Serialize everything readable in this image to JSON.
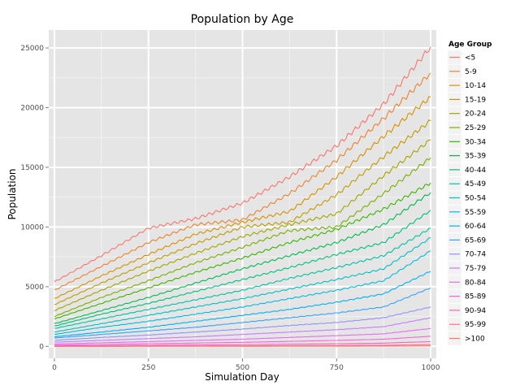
{
  "chart_data": {
    "type": "line",
    "title": "Population by Age",
    "xlabel": "Simulation Day",
    "ylabel": "Population",
    "xlim": [
      -15,
      1015
    ],
    "ylim": [
      -1000,
      26500
    ],
    "x_ticks": [
      0,
      250,
      500,
      750,
      1000
    ],
    "y_ticks": [
      0,
      5000,
      10000,
      15000,
      20000,
      25000
    ],
    "grid": true,
    "legend_title": "Age Group",
    "legend_position": "right",
    "x": [
      0,
      125,
      250,
      375,
      500,
      625,
      750,
      875,
      1000
    ],
    "series": [
      {
        "name": "<5",
        "color": "#F8766D",
        "values": [
          5400,
          7600,
          9900,
          10700,
          12000,
          14200,
          16800,
          20300,
          25100
        ]
      },
      {
        "name": "5-9",
        "color": "#EA8331",
        "values": [
          4700,
          6700,
          8700,
          10200,
          10600,
          12800,
          15600,
          19100,
          22900
        ]
      },
      {
        "name": "10-14",
        "color": "#D89000",
        "values": [
          4000,
          5900,
          7700,
          9400,
          10400,
          11300,
          14200,
          17600,
          20900
        ]
      },
      {
        "name": "15-19",
        "color": "#C09B00",
        "values": [
          3500,
          5300,
          7000,
          8600,
          10000,
          10400,
          12700,
          15900,
          18900
        ]
      },
      {
        "name": "20-24",
        "color": "#A3A500",
        "values": [
          3000,
          4700,
          6300,
          7800,
          9200,
          10200,
          11100,
          14300,
          17300
        ]
      },
      {
        "name": "25-29",
        "color": "#7CAE00",
        "values": [
          2500,
          4100,
          5500,
          7000,
          8300,
          9700,
          10000,
          12800,
          15800
        ]
      },
      {
        "name": "30-34",
        "color": "#39B600",
        "values": [
          2300,
          3600,
          4900,
          6200,
          7400,
          8700,
          9800,
          11500,
          13700
        ]
      },
      {
        "name": "35-39",
        "color": "#00BB4E",
        "values": [
          1900,
          3000,
          4100,
          5300,
          6500,
          7600,
          8700,
          10200,
          12900
        ]
      },
      {
        "name": "40-44",
        "color": "#00BF7D",
        "values": [
          1700,
          2700,
          3600,
          4600,
          5600,
          6600,
          7700,
          8700,
          11400
        ]
      },
      {
        "name": "45-49",
        "color": "#00C1A3",
        "values": [
          1500,
          2300,
          3100,
          3900,
          4700,
          5700,
          6600,
          7600,
          9900
        ]
      },
      {
        "name": "50-54",
        "color": "#00BFC4",
        "values": [
          1200,
          1900,
          2600,
          3300,
          4000,
          4800,
          5600,
          6500,
          9100
        ]
      },
      {
        "name": "55-59",
        "color": "#00BAE0",
        "values": [
          1000,
          1600,
          2100,
          2700,
          3300,
          4000,
          4700,
          5500,
          8000
        ]
      },
      {
        "name": "60-64",
        "color": "#00B0F6",
        "values": [
          800,
          1200,
          1600,
          2100,
          2600,
          3100,
          3700,
          4400,
          6300
        ]
      },
      {
        "name": "65-69",
        "color": "#35A2FF",
        "values": [
          700,
          1000,
          1300,
          1600,
          2000,
          2400,
          2800,
          3300,
          4900
        ]
      },
      {
        "name": "70-74",
        "color": "#9590FF",
        "values": [
          500,
          750,
          950,
          1200,
          1450,
          1750,
          2000,
          2400,
          3300
        ]
      },
      {
        "name": "75-79",
        "color": "#C77CFF",
        "values": [
          350,
          500,
          650,
          800,
          1000,
          1200,
          1400,
          1650,
          2400
        ]
      },
      {
        "name": "80-84",
        "color": "#E76BF3",
        "values": [
          200,
          300,
          400,
          500,
          600,
          750,
          900,
          1050,
          1500
        ]
      },
      {
        "name": "85-89",
        "color": "#FA62DB",
        "values": [
          100,
          160,
          220,
          280,
          340,
          420,
          500,
          600,
          850
        ]
      },
      {
        "name": "90-94",
        "color": "#FF62BC",
        "values": [
          40,
          60,
          90,
          120,
          150,
          180,
          220,
          270,
          400
        ]
      },
      {
        "name": "95-99",
        "color": "#FF6C91",
        "values": [
          10,
          15,
          25,
          35,
          45,
          55,
          70,
          90,
          150
        ]
      },
      {
        "name": ">100",
        "color": "#F8766D",
        "values": [
          2,
          3,
          5,
          7,
          9,
          12,
          15,
          20,
          40
        ]
      }
    ]
  }
}
